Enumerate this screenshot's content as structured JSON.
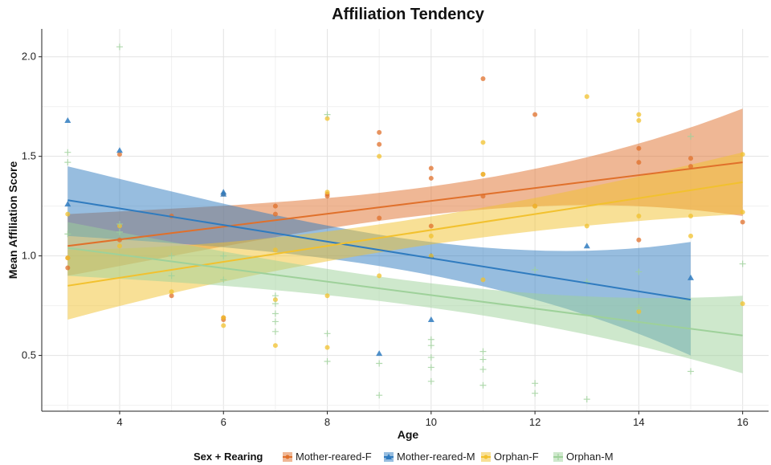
{
  "chart_data": {
    "type": "scatter",
    "title": "Affiliation Tendency",
    "xlabel": "Age",
    "ylabel": "Mean Affiliation Score",
    "xlim": [
      2.5,
      16.5
    ],
    "ylim": [
      0.22,
      2.14
    ],
    "xticks": [
      4,
      6,
      8,
      10,
      12,
      14,
      16
    ],
    "yticks": [
      0.5,
      1.0,
      1.5,
      2.0
    ],
    "xtick_labels": [
      "4",
      "6",
      "8",
      "10",
      "12",
      "14",
      "16"
    ],
    "ytick_labels": [
      "0.5",
      "1.0",
      "1.5",
      "2.0"
    ],
    "grid": true,
    "legend": {
      "title": "Sex + Rearing",
      "position": "bottom"
    },
    "series": [
      {
        "name": "Mother-reared-F",
        "color": "#E0702B",
        "marker": "circle",
        "fit": {
          "x": [
            3,
            16
          ],
          "y": [
            1.05,
            1.47
          ],
          "lower": [
            0.9,
            1.2
          ],
          "upper": [
            1.21,
            1.74
          ]
        },
        "points": [
          [
            3,
            0.99
          ],
          [
            3,
            0.94
          ],
          [
            4,
            1.51
          ],
          [
            4,
            1.08
          ],
          [
            5,
            1.2
          ],
          [
            5,
            0.8
          ],
          [
            6,
            0.68
          ],
          [
            6,
            0.69
          ],
          [
            6,
            1.31
          ],
          [
            7,
            1.25
          ],
          [
            7,
            1.21
          ],
          [
            8,
            1.31
          ],
          [
            8,
            1.3
          ],
          [
            9,
            1.62
          ],
          [
            9,
            1.56
          ],
          [
            9,
            1.19
          ],
          [
            10,
            1.44
          ],
          [
            10,
            1.39
          ],
          [
            10,
            1.15
          ],
          [
            11,
            1.89
          ],
          [
            11,
            1.41
          ],
          [
            11,
            1.3
          ],
          [
            12,
            1.71
          ],
          [
            12,
            1.25
          ],
          [
            14,
            1.54
          ],
          [
            14,
            1.47
          ],
          [
            14,
            1.08
          ],
          [
            15,
            1.49
          ],
          [
            15,
            1.45
          ],
          [
            16,
            1.17
          ]
        ]
      },
      {
        "name": "Mother-reared-M",
        "color": "#2F7BBF",
        "marker": "triangle",
        "fit": {
          "x": [
            3,
            15
          ],
          "y": [
            1.28,
            0.78
          ],
          "lower": [
            1.1,
            0.5
          ],
          "upper": [
            1.45,
            1.07
          ]
        },
        "points": [
          [
            3,
            1.68
          ],
          [
            3,
            1.26
          ],
          [
            4,
            1.53
          ],
          [
            6,
            1.32
          ],
          [
            6,
            1.31
          ],
          [
            9,
            0.51
          ],
          [
            10,
            0.68
          ],
          [
            10,
            1.0
          ],
          [
            13,
            1.05
          ],
          [
            15,
            0.89
          ]
        ]
      },
      {
        "name": "Orphan-F",
        "color": "#F2C12E",
        "marker": "circle",
        "fit": {
          "x": [
            3,
            16
          ],
          "y": [
            0.85,
            1.37
          ],
          "lower": [
            0.68,
            1.21
          ],
          "upper": [
            1.03,
            1.52
          ]
        },
        "points": [
          [
            3,
            1.21
          ],
          [
            3,
            0.99
          ],
          [
            4,
            1.15
          ],
          [
            4,
            1.05
          ],
          [
            5,
            0.82
          ],
          [
            6,
            0.65
          ],
          [
            6,
            0.69
          ],
          [
            7,
            0.55
          ],
          [
            7,
            0.78
          ],
          [
            7,
            1.03
          ],
          [
            8,
            1.69
          ],
          [
            8,
            0.8
          ],
          [
            8,
            0.54
          ],
          [
            8,
            1.32
          ],
          [
            9,
            1.5
          ],
          [
            9,
            0.9
          ],
          [
            10,
            1.0
          ],
          [
            10,
            1.1
          ],
          [
            11,
            1.57
          ],
          [
            11,
            0.88
          ],
          [
            11,
            1.41
          ],
          [
            12,
            1.25
          ],
          [
            13,
            1.8
          ],
          [
            13,
            1.15
          ],
          [
            14,
            1.71
          ],
          [
            14,
            1.68
          ],
          [
            14,
            1.2
          ],
          [
            14,
            0.72
          ],
          [
            15,
            1.2
          ],
          [
            15,
            1.1
          ],
          [
            16,
            1.51
          ],
          [
            16,
            1.22
          ],
          [
            16,
            0.76
          ]
        ]
      },
      {
        "name": "Orphan-M",
        "color": "#9ED19A",
        "marker": "plus",
        "fit": {
          "x": [
            3,
            16
          ],
          "y": [
            1.04,
            0.6
          ],
          "lower": [
            0.9,
            0.41
          ],
          "upper": [
            1.17,
            0.8
          ]
        },
        "points": [
          [
            3,
            1.52
          ],
          [
            3,
            1.47
          ],
          [
            3,
            1.11
          ],
          [
            4,
            2.05
          ],
          [
            4,
            1.16
          ],
          [
            4,
            1.12
          ],
          [
            5,
            1.0
          ],
          [
            5,
            0.9
          ],
          [
            6,
            1.0
          ],
          [
            6,
            0.88
          ],
          [
            7,
            0.76
          ],
          [
            7,
            0.71
          ],
          [
            7,
            0.67
          ],
          [
            7,
            0.62
          ],
          [
            7,
            0.8
          ],
          [
            8,
            1.71
          ],
          [
            8,
            0.61
          ],
          [
            8,
            0.47
          ],
          [
            9,
            0.46
          ],
          [
            9,
            0.3
          ],
          [
            10,
            0.58
          ],
          [
            10,
            0.55
          ],
          [
            10,
            0.49
          ],
          [
            10,
            0.44
          ],
          [
            10,
            0.37
          ],
          [
            11,
            0.52
          ],
          [
            11,
            0.48
          ],
          [
            11,
            0.43
          ],
          [
            11,
            0.35
          ],
          [
            12,
            0.36
          ],
          [
            12,
            0.31
          ],
          [
            12,
            0.93
          ],
          [
            13,
            0.28
          ],
          [
            13,
            0.87
          ],
          [
            14,
            0.92
          ],
          [
            14,
            0.74
          ],
          [
            15,
            1.6
          ],
          [
            15,
            0.42
          ],
          [
            16,
            0.96
          ]
        ]
      }
    ]
  }
}
